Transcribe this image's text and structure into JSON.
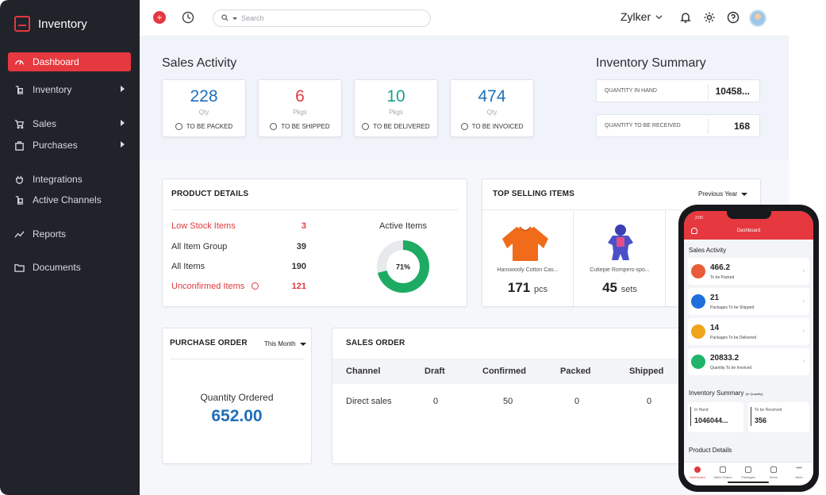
{
  "brand": {
    "name": "Inventory"
  },
  "sidebar": {
    "items": [
      {
        "label": "Dashboard"
      },
      {
        "label": "Inventory"
      },
      {
        "label": "Sales"
      },
      {
        "label": "Purchases"
      },
      {
        "label": "Integrations"
      },
      {
        "label": "Active Channels"
      },
      {
        "label": "Reports"
      },
      {
        "label": "Documents"
      }
    ]
  },
  "topbar": {
    "search_placeholder": "Search",
    "org_name": "Zylker"
  },
  "sales_activity": {
    "title": "Sales Activity",
    "cards": [
      {
        "value": "228",
        "unit": "Qty",
        "label": "TO BE PACKED",
        "color": "#1e6fb8"
      },
      {
        "value": "6",
        "unit": "Pkgs",
        "label": "TO BE SHIPPED",
        "color": "#e0393e"
      },
      {
        "value": "10",
        "unit": "Pkgs",
        "label": "TO BE DELIVERED",
        "color": "#1aa38a"
      },
      {
        "value": "474",
        "unit": "Qty",
        "label": "TO BE INVOICED",
        "color": "#1e6fb8"
      }
    ]
  },
  "inventory_summary": {
    "title": "Inventory Summary",
    "rows": [
      {
        "label": "QUANTITY IN HAND",
        "value": "10458..."
      },
      {
        "label": "QUANTITY TO BE RECEIVED",
        "value": "168"
      }
    ]
  },
  "product_details": {
    "title": "PRODUCT DETAILS",
    "rows": [
      {
        "label": "Low Stock Items",
        "value": "3"
      },
      {
        "label": "All Item Group",
        "value": "39"
      },
      {
        "label": "All Items",
        "value": "190"
      },
      {
        "label": "Unconfirmed Items",
        "value": "121"
      }
    ],
    "active_items": {
      "title": "Active Items",
      "percent_label": "71%",
      "percent": 71
    }
  },
  "top_selling": {
    "title": "TOP SELLING ITEMS",
    "period": "Previous Year",
    "items": [
      {
        "name": "Hanswooly Cotton Cas...",
        "qty": "171",
        "unit": "pcs"
      },
      {
        "name": "Cutiepie Rompers-spo...",
        "qty": "45",
        "unit": "sets"
      }
    ]
  },
  "purchase_order": {
    "title": "PURCHASE ORDER",
    "period": "This Month",
    "label": "Quantity Ordered",
    "value": "652.00"
  },
  "sales_order": {
    "title": "SALES ORDER",
    "columns": [
      "Channel",
      "Draft",
      "Confirmed",
      "Packed",
      "Shipped"
    ],
    "rows": [
      [
        "Direct sales",
        "0",
        "50",
        "0",
        "0"
      ]
    ]
  },
  "phone": {
    "time": "2:00",
    "header_title": "Dashboard",
    "sales_activity_title": "Sales Activity",
    "rows": [
      {
        "value": "466.2",
        "label": "To be Packed",
        "color": "#e85c3a"
      },
      {
        "value": "21",
        "label": "Packages To be Shipped",
        "color": "#1e6fd9"
      },
      {
        "value": "14",
        "label": "Packages To be Delivered",
        "color": "#f0a31c"
      },
      {
        "value": "20833.2",
        "label": "Quantity To be Invoiced",
        "color": "#1fb56b"
      }
    ],
    "inventory_title": "Inventory Summary",
    "inventory_note": "(In Quantity)",
    "inventory": [
      {
        "label": "In Hand",
        "value": "1046044..."
      },
      {
        "label": "To be Received",
        "value": "356"
      }
    ],
    "product_details_title": "Product Details",
    "tabs": [
      "Dashboard",
      "Sales Orders",
      "Packages",
      "Items",
      "More"
    ]
  }
}
